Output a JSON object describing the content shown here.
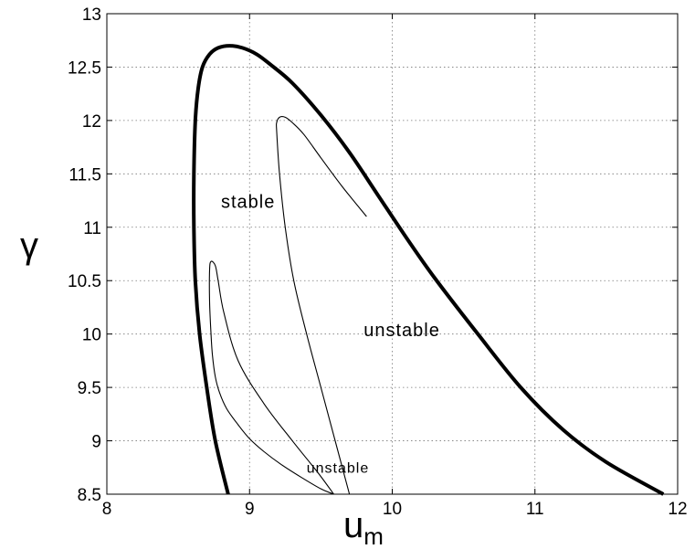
{
  "chart_data": {
    "type": "line",
    "xlabel": "u",
    "xlabel_sub": "m",
    "ylabel": "γ",
    "xlim": [
      8,
      12
    ],
    "ylim": [
      8.5,
      13
    ],
    "xticks": [
      "8",
      "9",
      "10",
      "11",
      "12"
    ],
    "yticks": [
      "8.5",
      "9",
      "9.5",
      "10",
      "10.5",
      "11",
      "11.5",
      "12",
      "12.5",
      "13"
    ],
    "grid": true,
    "series": [
      {
        "style": "thick",
        "x": [
          8.85,
          8.76,
          8.7,
          8.65,
          8.62,
          8.61,
          8.61,
          8.62,
          8.64,
          8.67,
          8.72,
          8.78,
          8.86,
          8.95,
          9.05,
          9.15,
          9.3,
          9.5,
          9.7,
          9.9,
          10.1,
          10.3,
          10.6,
          10.9,
          11.2,
          11.5,
          11.9
        ],
        "y": [
          8.5,
          9.0,
          9.5,
          10.0,
          10.5,
          11.0,
          11.5,
          12.0,
          12.3,
          12.5,
          12.62,
          12.68,
          12.7,
          12.68,
          12.62,
          12.52,
          12.35,
          12.05,
          11.7,
          11.3,
          10.9,
          10.52,
          10.0,
          9.5,
          9.1,
          8.8,
          8.5
        ]
      },
      {
        "style": "thin",
        "x": [
          9.7,
          9.6,
          9.5,
          9.4,
          9.31,
          9.25,
          9.21,
          9.19,
          9.19,
          9.21,
          9.25,
          9.3,
          9.38,
          9.5,
          9.65,
          9.82
        ],
        "y": [
          8.5,
          9.0,
          9.5,
          10.0,
          10.5,
          11.0,
          11.5,
          11.9,
          11.98,
          12.03,
          12.03,
          11.98,
          11.87,
          11.65,
          11.38,
          11.1
        ]
      },
      {
        "style": "thin",
        "x": [
          9.59,
          9.48,
          9.3,
          9.1,
          8.92,
          8.82,
          8.78,
          8.76,
          8.73,
          8.72,
          8.72,
          8.73,
          8.74,
          8.76,
          8.79,
          8.84,
          8.92,
          9.0,
          9.1,
          9.22,
          9.36,
          9.5,
          9.59
        ],
        "y": [
          8.5,
          8.7,
          9.0,
          9.35,
          9.75,
          10.2,
          10.5,
          10.64,
          10.68,
          10.6,
          10.3,
          10.0,
          9.8,
          9.6,
          9.45,
          9.3,
          9.15,
          9.02,
          8.9,
          8.78,
          8.66,
          8.55,
          8.5
        ]
      }
    ],
    "annotations": [
      {
        "text": "stable",
        "x": 8.8,
        "y": 11.18,
        "size": "medium"
      },
      {
        "text": "unstable",
        "x": 9.8,
        "y": 9.98,
        "size": "medium"
      },
      {
        "text": "unstable",
        "x": 9.4,
        "y": 8.7,
        "size": "small"
      }
    ]
  }
}
